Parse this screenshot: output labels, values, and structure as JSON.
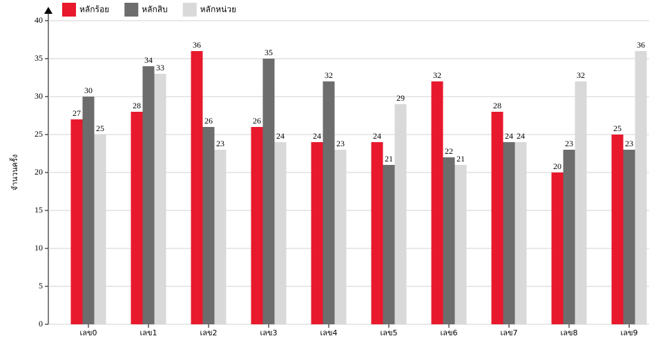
{
  "chart_data": {
    "type": "bar",
    "y_label": "จำนวนครั้ง",
    "categories": [
      "เลข0",
      "เลข1",
      "เลข2",
      "เลข3",
      "เลข4",
      "เลข5",
      "เลข6",
      "เลข7",
      "เลข8",
      "เลข9"
    ],
    "series": [
      {
        "name": "หลักร้อย",
        "color": "#e8192c",
        "values": [
          27,
          28,
          36,
          26,
          24,
          24,
          32,
          28,
          20,
          25
        ]
      },
      {
        "name": "หลักสิบ",
        "color": "#6d6d6d",
        "values": [
          30,
          34,
          26,
          35,
          32,
          21,
          22,
          24,
          23,
          23
        ]
      },
      {
        "name": "หลักหน่วย",
        "color": "#d9d9d9",
        "values": [
          25,
          33,
          23,
          24,
          23,
          29,
          21,
          24,
          32,
          36
        ]
      }
    ],
    "ylim": [
      0,
      40
    ],
    "yticks": [
      0,
      5,
      10,
      15,
      20,
      25,
      30,
      35,
      40
    ],
    "grid": true
  }
}
